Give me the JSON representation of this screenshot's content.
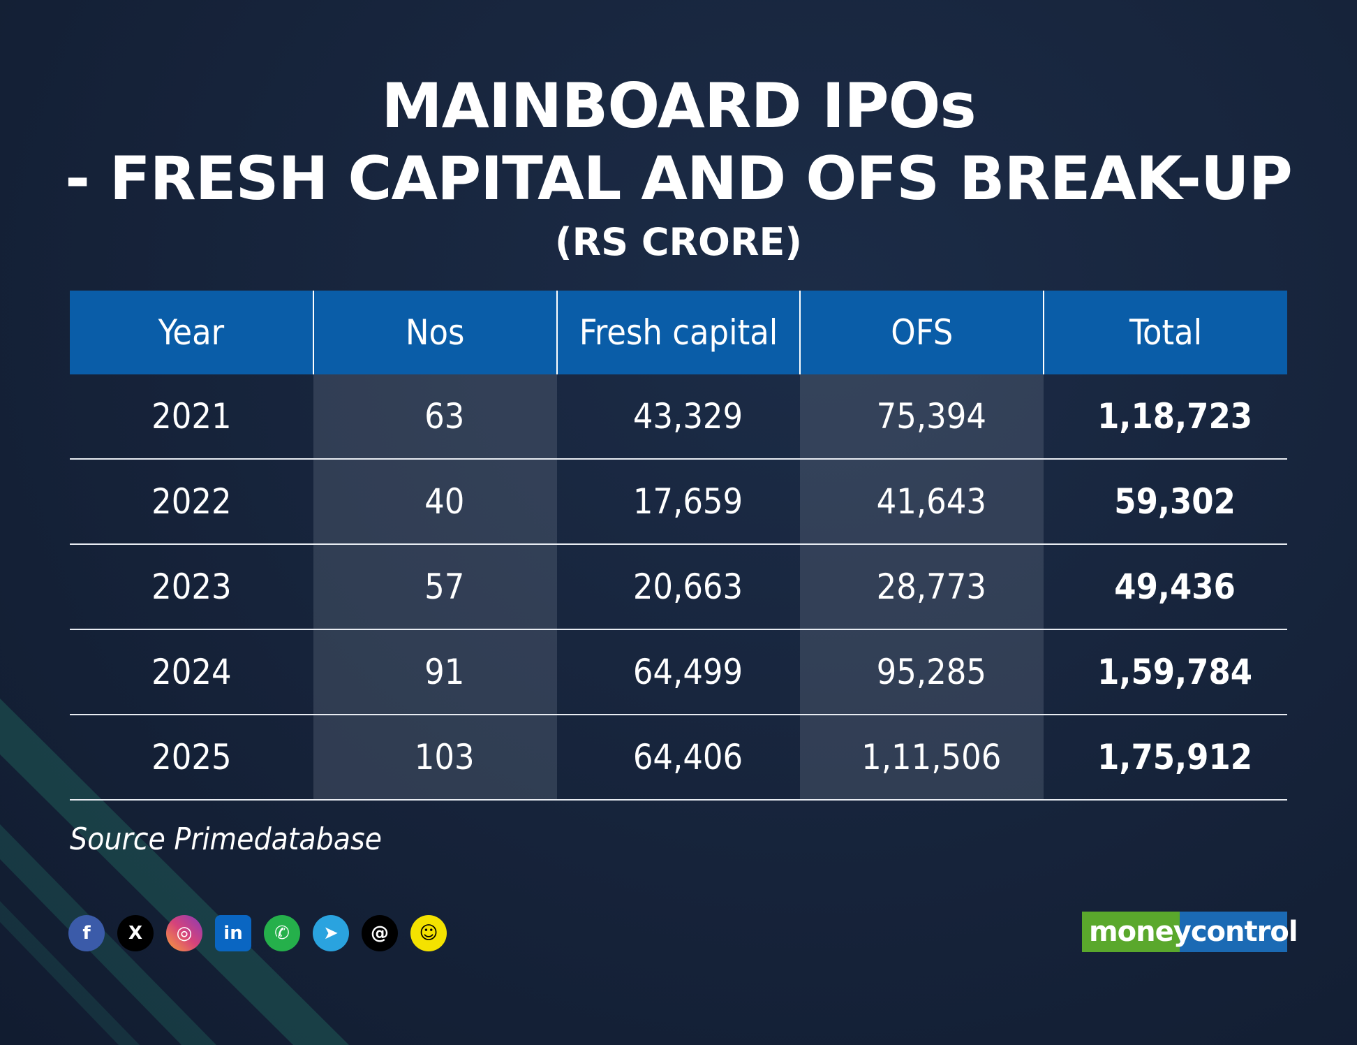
{
  "title": {
    "line1": "MAINBOARD IPOs",
    "line2": "- FRESH CAPITAL AND OFS BREAK-UP",
    "line3": "(RS CRORE)"
  },
  "chart_data": {
    "type": "table",
    "columns": [
      "Year",
      "Nos",
      "Fresh capital",
      "OFS",
      "Total"
    ],
    "rows": [
      [
        "2021",
        "63",
        "43,329",
        "75,394",
        "1,18,723"
      ],
      [
        "2022",
        "40",
        "17,659",
        "41,643",
        "59,302"
      ],
      [
        "2023",
        "57",
        "20,663",
        "28,773",
        "49,436"
      ],
      [
        "2024",
        "91",
        "64,499",
        "95,285",
        "1,59,784"
      ],
      [
        "2025",
        "103",
        "64,406",
        "1,11,506",
        "1,75,912"
      ]
    ]
  },
  "source": "Source Primedatabase",
  "social": {
    "icons": [
      {
        "name": "facebook-icon",
        "glyph": "f",
        "color": "#3b5ba9"
      },
      {
        "name": "x-icon",
        "glyph": "X",
        "color": "#000000"
      },
      {
        "name": "instagram-icon",
        "glyph": "◎",
        "color": "#d6437a"
      },
      {
        "name": "linkedin-icon",
        "glyph": "in",
        "color": "#0a66c2"
      },
      {
        "name": "whatsapp-icon",
        "glyph": "✆",
        "color": "#25b04b"
      },
      {
        "name": "telegram-icon",
        "glyph": "➤",
        "color": "#2aa3df"
      },
      {
        "name": "threads-icon",
        "glyph": "@",
        "color": "#000000"
      },
      {
        "name": "snapchat-icon",
        "glyph": "☺",
        "color": "#f4e200"
      }
    ]
  },
  "logo": {
    "part1": "money",
    "part2": "control"
  }
}
